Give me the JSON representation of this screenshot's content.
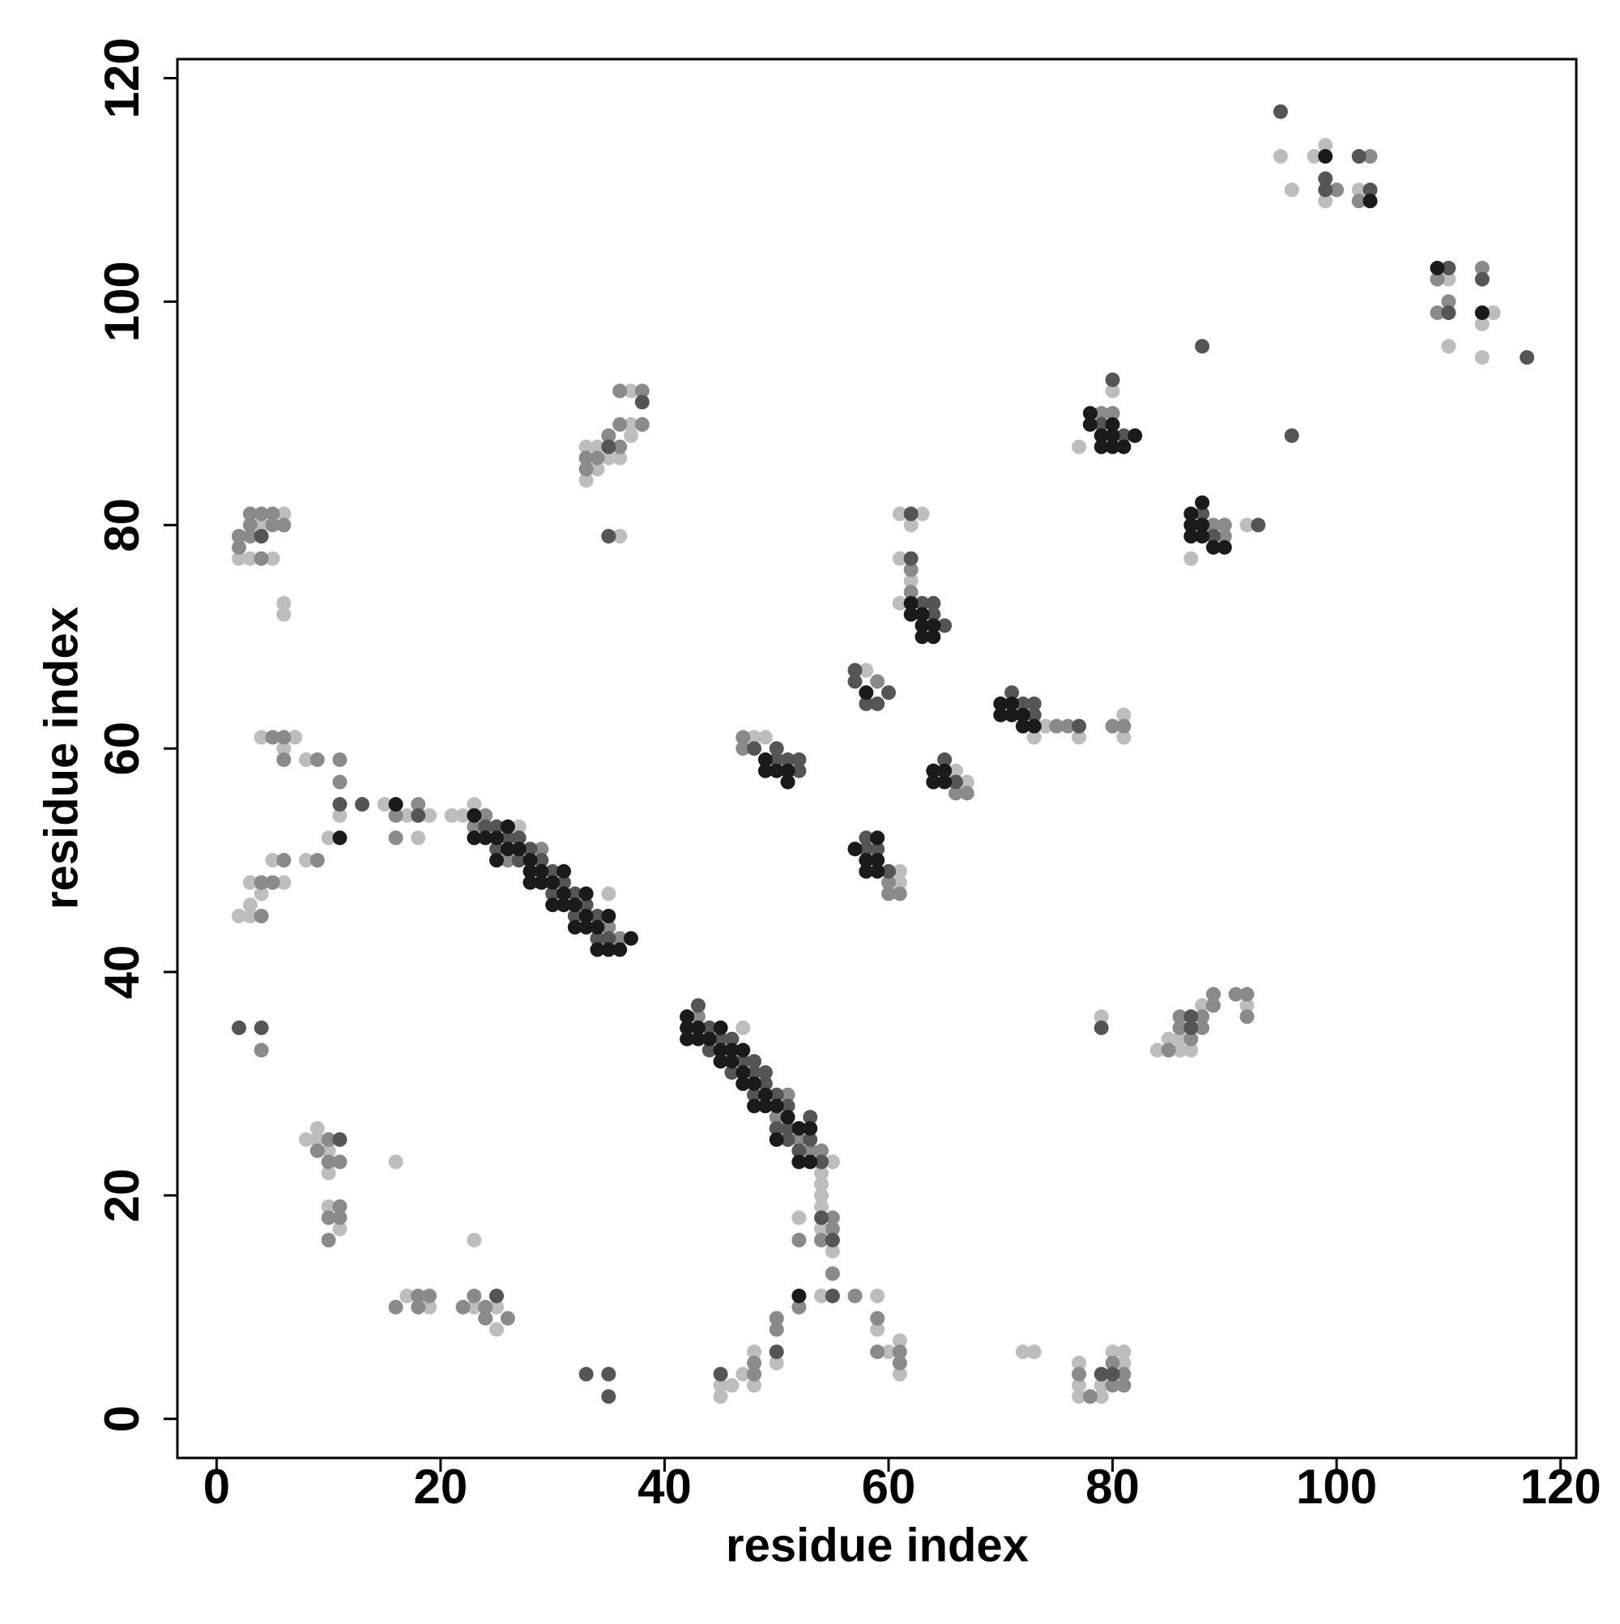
{
  "chart_data": {
    "type": "scatter",
    "xlabel": "residue index",
    "ylabel": "residue index",
    "xlim": [
      -3.5,
      121.4
    ],
    "ylim": [
      -3.5,
      121.7
    ],
    "xticks": [
      0,
      20,
      40,
      60,
      80,
      100,
      120
    ],
    "yticks": [
      0,
      20,
      40,
      60,
      80,
      100,
      120
    ],
    "grid": false,
    "series": [
      {
        "color": "#bdbdbd",
        "x": [
          8,
          9,
          9,
          10,
          10,
          10,
          11,
          16,
          17,
          19,
          23,
          25,
          25,
          23,
          45,
          45,
          46,
          47,
          48,
          48,
          50,
          52,
          54,
          54,
          55,
          54,
          59,
          59,
          60,
          61,
          61,
          54,
          54,
          55,
          72,
          73,
          77,
          77,
          77,
          79,
          79,
          80,
          81,
          81,
          79,
          84,
          85,
          86,
          86,
          87,
          88,
          92,
          47,
          54,
          23,
          27,
          35,
          15,
          17,
          18,
          19,
          21,
          22,
          11,
          10,
          8,
          8,
          4,
          6,
          7,
          5,
          6,
          3,
          4,
          3,
          2,
          3,
          2,
          3,
          4,
          5,
          6,
          6,
          6,
          33,
          33,
          34,
          34,
          35,
          36,
          37,
          37,
          37,
          36,
          58,
          48,
          49,
          61,
          61,
          61,
          62,
          63,
          61,
          62,
          61,
          66,
          67,
          73,
          74,
          77,
          81,
          81,
          77,
          80,
          87,
          92,
          95,
          96,
          98,
          99,
          99,
          102,
          110,
          110,
          113,
          113,
          114
        ],
        "y": [
          25,
          25,
          26,
          24,
          22,
          19,
          17,
          23,
          11,
          10,
          10,
          10,
          8,
          16,
          3,
          2,
          3,
          4,
          6,
          3,
          5,
          18,
          19,
          17,
          15,
          11,
          11,
          8,
          6,
          7,
          4,
          20,
          21,
          23,
          6,
          6,
          5,
          3,
          2,
          2,
          3,
          6,
          6,
          5,
          36,
          33,
          34,
          34,
          33,
          33,
          37,
          37,
          35,
          22,
          55,
          53,
          47,
          55,
          54,
          52,
          54,
          54,
          54,
          54,
          52,
          59,
          50,
          61,
          60,
          61,
          50,
          48,
          48,
          47,
          46,
          45,
          45,
          77,
          77,
          80,
          77,
          81,
          73,
          72,
          87,
          84,
          87,
          85,
          86,
          86,
          92,
          89,
          88,
          79,
          67,
          61,
          61,
          49,
          48,
          81,
          80,
          81,
          77,
          75,
          73,
          58,
          57,
          61,
          62,
          61,
          63,
          61,
          87,
          92,
          77,
          80,
          113,
          110,
          113,
          114,
          109,
          110,
          102,
          96,
          98,
          95,
          99
        ]
      },
      {
        "color": "#8a8a8a",
        "x": [
          4,
          9,
          10,
          10,
          11,
          10,
          11,
          11,
          10,
          16,
          18,
          18,
          19,
          22,
          23,
          24,
          24,
          26,
          48,
          48,
          50,
          50,
          52,
          52,
          54,
          55,
          55,
          55,
          57,
          59,
          59,
          61,
          61,
          77,
          78,
          80,
          80,
          81,
          81,
          85,
          86,
          86,
          87,
          88,
          88,
          89,
          89,
          91,
          92,
          92,
          43,
          50,
          51,
          52,
          53,
          54,
          23,
          24,
          26,
          29,
          35,
          36,
          16,
          16,
          18,
          11,
          11,
          9,
          9,
          5,
          6,
          6,
          6,
          5,
          4,
          4,
          2,
          2,
          3,
          3,
          3,
          4,
          4,
          5,
          5,
          6,
          33,
          33,
          34,
          35,
          36,
          36,
          36,
          38,
          38,
          59,
          47,
          47,
          60,
          60,
          61,
          62,
          62,
          66,
          67,
          75,
          76,
          80,
          81,
          79,
          80,
          89,
          90,
          90,
          100,
          103,
          102,
          109,
          109,
          110,
          113
        ],
        "y": [
          33,
          24,
          25,
          23,
          23,
          18,
          19,
          18,
          16,
          10,
          11,
          10,
          11,
          10,
          11,
          10,
          9,
          9,
          5,
          4,
          8,
          9,
          10,
          16,
          16,
          18,
          17,
          13,
          11,
          9,
          6,
          6,
          5,
          4,
          2,
          5,
          3,
          4,
          3,
          33,
          35,
          36,
          34,
          36,
          35,
          38,
          37,
          38,
          38,
          36,
          36,
          27,
          29,
          25,
          24,
          24,
          53,
          54,
          50,
          51,
          44,
          43,
          54,
          52,
          55,
          57,
          59,
          59,
          50,
          61,
          61,
          59,
          50,
          48,
          48,
          45,
          79,
          78,
          81,
          80,
          79,
          81,
          77,
          81,
          80,
          80,
          86,
          85,
          86,
          88,
          89,
          87,
          92,
          92,
          89,
          66,
          61,
          60,
          48,
          47,
          47,
          76,
          74,
          56,
          56,
          62,
          62,
          62,
          62,
          90,
          90,
          80,
          80,
          79,
          110,
          113,
          109,
          102,
          99,
          100,
          103
        ]
      },
      {
        "color": "#555555",
        "x": [
          2,
          4,
          11,
          25,
          33,
          35,
          35,
          45,
          50,
          54,
          55,
          55,
          79,
          80,
          79,
          87,
          87,
          43,
          44,
          44,
          45,
          46,
          46,
          47,
          48,
          48,
          48,
          49,
          49,
          50,
          50,
          51,
          51,
          51,
          52,
          53,
          53,
          54,
          24,
          25,
          25,
          26,
          27,
          27,
          28,
          29,
          30,
          30,
          31,
          32,
          32,
          33,
          34,
          34,
          35,
          18,
          13,
          11,
          4,
          35,
          38,
          35,
          57,
          57,
          58,
          59,
          60,
          48,
          50,
          50,
          51,
          52,
          52,
          58,
          58,
          59,
          60,
          62,
          62,
          63,
          64,
          64,
          65,
          65,
          66,
          71,
          72,
          73,
          73,
          77,
          79,
          80,
          81,
          88,
          89,
          93,
          88,
          96,
          95,
          99,
          99,
          102,
          103,
          110,
          110,
          113,
          117
        ],
        "y": [
          35,
          35,
          25,
          11,
          4,
          4,
          2,
          4,
          6,
          18,
          16,
          11,
          4,
          4,
          35,
          36,
          35,
          37,
          35,
          33,
          34,
          34,
          31,
          32,
          32,
          31,
          29,
          31,
          30,
          29,
          26,
          28,
          26,
          25,
          24,
          27,
          25,
          23,
          53,
          53,
          51,
          52,
          52,
          50,
          51,
          50,
          49,
          47,
          48,
          47,
          45,
          46,
          45,
          43,
          43,
          54,
          55,
          55,
          79,
          87,
          91,
          79,
          67,
          66,
          64,
          64,
          65,
          60,
          60,
          59,
          59,
          59,
          58,
          52,
          51,
          51,
          49,
          81,
          77,
          73,
          73,
          72,
          71,
          59,
          57,
          65,
          64,
          64,
          63,
          62,
          89,
          93,
          88,
          81,
          79,
          80,
          96,
          88,
          117,
          111,
          110,
          113,
          110,
          103,
          99,
          102,
          95
        ]
      },
      {
        "color": "#1a1a1a",
        "x": [
          52,
          42,
          42,
          42,
          43,
          43,
          44,
          45,
          45,
          45,
          46,
          46,
          47,
          47,
          47,
          48,
          48,
          49,
          49,
          50,
          50,
          51,
          52,
          52,
          53,
          53,
          23,
          23,
          24,
          25,
          25,
          26,
          26,
          27,
          28,
          28,
          28,
          29,
          29,
          30,
          30,
          31,
          31,
          31,
          32,
          32,
          33,
          33,
          33,
          34,
          34,
          35,
          35,
          36,
          37,
          16,
          11,
          58,
          49,
          49,
          50,
          51,
          51,
          57,
          58,
          58,
          59,
          59,
          59,
          62,
          62,
          63,
          63,
          64,
          64,
          63,
          64,
          64,
          65,
          65,
          70,
          70,
          71,
          71,
          72,
          72,
          73,
          78,
          78,
          79,
          79,
          80,
          80,
          80,
          81,
          82,
          87,
          87,
          87,
          88,
          88,
          88,
          89,
          90,
          99,
          103,
          109,
          113
        ],
        "y": [
          11,
          36,
          35,
          34,
          35,
          34,
          34,
          35,
          33,
          32,
          33,
          32,
          33,
          31,
          30,
          30,
          28,
          29,
          28,
          28,
          25,
          27,
          26,
          23,
          26,
          23,
          54,
          52,
          52,
          52,
          50,
          53,
          51,
          51,
          50,
          49,
          48,
          49,
          48,
          48,
          46,
          49,
          47,
          46,
          46,
          44,
          47,
          45,
          44,
          44,
          42,
          45,
          42,
          42,
          43,
          55,
          52,
          65,
          59,
          58,
          58,
          58,
          57,
          51,
          50,
          49,
          52,
          50,
          49,
          73,
          72,
          72,
          71,
          71,
          70,
          70,
          58,
          57,
          58,
          57,
          64,
          63,
          64,
          63,
          63,
          62,
          62,
          90,
          89,
          88,
          87,
          89,
          88,
          87,
          87,
          88,
          81,
          80,
          79,
          82,
          80,
          79,
          78,
          78,
          113,
          109,
          103,
          99
        ]
      }
    ]
  }
}
